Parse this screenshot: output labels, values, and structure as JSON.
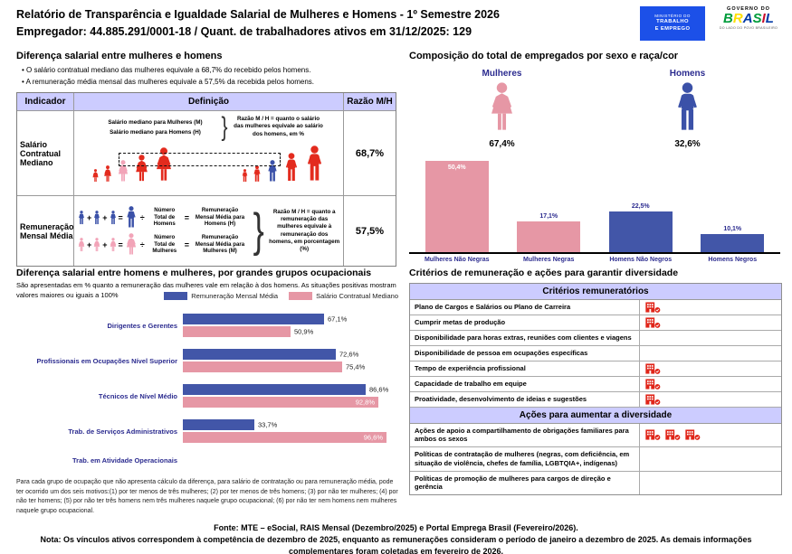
{
  "colors": {
    "accent_blue_bar": "#4256A8",
    "accent_pink_bar": "#E697A5",
    "figure_red": "#E32B1E",
    "figure_pink": "#F2A4B8",
    "figure_blue": "#3B51A8",
    "table_header_bg": "#CCCCFF",
    "navy_label": "#2B2B8F",
    "logo_blue": "#1C50E8",
    "icon_red": "#E02519",
    "brasil_letter_colors": [
      "#009C3B",
      "#FFDF00",
      "#0039A6",
      "#009C3B",
      "#C8102E",
      "#0039A6"
    ]
  },
  "header": {
    "title": "Relatório de Transparência e Igualdade Salarial de Mulheres e Homens - 1º Semestre 2026",
    "employer_line": "Empregador: 44.885.291/0001-18 / Quant. de trabalhadores ativos em 31/12/2025: 129",
    "logo_mte": {
      "line1": "MINISTÉRIO DO",
      "line2": "TRABALHO",
      "line3": "E EMPREGO"
    },
    "logo_gov": {
      "top": "GOVERNO DO",
      "brand": "BRASIL",
      "tagline": "DO LADO DO POVO BRASILEIRO"
    }
  },
  "formula_ops": {
    "plus": "+",
    "equals": "=",
    "divide": "÷"
  },
  "salary_diff": {
    "title": "Diferença salarial entre mulheres e homens",
    "bullets": [
      "O salário contratual mediano das mulheres equivale a 68,7% do recebido pelos homens.",
      "A remuneração média mensal das mulheres equivale a 57,5% da recebida pelos homens."
    ],
    "table": {
      "headers": [
        "Indicador",
        "Definição",
        "Razão M/H"
      ],
      "rows": [
        {
          "indicator": "Salário Contratual Mediano",
          "def_line1": "Salário mediano para Mulheres (M)",
          "def_line2": "Salário mediano para Homens (H)",
          "def_note": "Razão M / H = quanto o salário das mulheres equivale ao salário dos homens, em %",
          "ratio": "68,7%"
        },
        {
          "indicator": "Remuneração Mensal Média",
          "men_divisor": "Número\nTotal de\nHomens",
          "men_result": "Remuneração\nMensal Média para\nHomens (H)",
          "women_divisor": "Número\nTotal de\nMulheres",
          "women_result": "Remuneração\nMensal Média para\nMulheres (M)",
          "def_note": "Razão M / H = quanto a remuneração das mulheres equivale à remuneração dos homens, em porcentagem (%)",
          "ratio": "57,5%"
        }
      ]
    }
  },
  "composition": {
    "title": "Composição do total de empregados por sexo e raça/cor",
    "women_label": "Mulheres",
    "women_pct": "67,4%",
    "men_label": "Homens",
    "men_pct": "32,6%"
  },
  "chart_data": [
    {
      "type": "bar",
      "orientation": "vertical",
      "title": "Composição do total de empregados por sexo e raça/cor",
      "categories": [
        "Mulheres Não Negras",
        "Mulheres Negras",
        "Homens Não Negros",
        "Homens Negros"
      ],
      "values": [
        50.4,
        17.1,
        22.5,
        10.1
      ],
      "labels": [
        "50,4%",
        "17,1%",
        "22,5%",
        "10,1%"
      ],
      "colors": [
        "pink",
        "pink",
        "blue",
        "blue"
      ],
      "label_inside": [
        true,
        false,
        false,
        false
      ],
      "ylim": [
        0,
        53
      ],
      "grid": false
    },
    {
      "type": "bar",
      "orientation": "horizontal",
      "title": "Diferença salarial entre homens e mulheres, por grandes grupos ocupacionais",
      "categories": [
        "Dirigentes e Gerentes",
        "Profissionais em Ocupações Nível Superior",
        "Técnicos de Nível Médio",
        "Trab. de Serviços Administrativos",
        "Trab. em Atividade Operacionais"
      ],
      "series": [
        {
          "name": "Remuneração Mensal Média",
          "color": "blue",
          "values": [
            67.1,
            72.6,
            86.6,
            33.7,
            null
          ],
          "labels": [
            "67,1%",
            "72,6%",
            "86,6%",
            "33,7%",
            ""
          ],
          "label_inside": [
            false,
            false,
            false,
            false,
            false
          ]
        },
        {
          "name": "Salário Contratual Mediano",
          "color": "pink",
          "values": [
            50.9,
            75.4,
            92.8,
            96.6,
            null
          ],
          "labels": [
            "50,9%",
            "75,4%",
            "92,8%",
            "96,6%",
            ""
          ],
          "label_inside": [
            false,
            false,
            true,
            true,
            false
          ]
        }
      ],
      "xlim": [
        0,
        100
      ],
      "legend_position": "top-right",
      "grid": false
    }
  ],
  "occupational": {
    "title": "Diferença salarial entre homens e mulheres, por grandes grupos ocupacionais",
    "subtitle": "São apresentadas em % quanto a remuneração das mulheres vale em relação à dos homens. As situações positivas mostram valores maiores ou iguais a 100%",
    "footnote": "Para cada grupo de ocupação que não apresenta cálculo da diferença, para salário de contratação ou para remuneração média, pode ter ocorrido um dos seis motivos:(1) por ter menos de três mulheres; (2) por ter menos de três homens; (3) por não ter mulheres; (4) por não ter homens; (5) por não ter três homens nem três mulheres naquele grupo ocupacional; (6) por não ter nem homens nem mulheres naquele grupo ocupacional."
  },
  "criteria": {
    "title": "Critérios de remuneração e ações para garantir diversidade",
    "sections": [
      {
        "header": "Critérios remuneratórios",
        "rows": [
          {
            "label": "Plano de Cargos e Salários ou Plano de Carreira",
            "icons": 1
          },
          {
            "label": "Cumprir metas de produção",
            "icons": 1
          },
          {
            "label": "Disponibilidade para horas extras, reuniões com clientes e viagens",
            "icons": 0
          },
          {
            "label": "Disponibilidade de pessoa em ocupações específicas",
            "icons": 0
          },
          {
            "label": "Tempo de experiência profissional",
            "icons": 1
          },
          {
            "label": "Capacidade de trabalho em equipe",
            "icons": 1
          },
          {
            "label": "Proatividade, desenvolvimento de ideias e sugestões",
            "icons": 1
          }
        ]
      },
      {
        "header": "Ações para aumentar a diversidade",
        "rows": [
          {
            "label": "Ações de apoio a compartilhamento de obrigações familiares para ambos os sexos",
            "icons": 3
          },
          {
            "label": "Políticas de contratação de mulheres (negras, com deficiência, em situação de violência, chefes de família, LGBTQIA+, indígenas)",
            "icons": 0
          },
          {
            "label": "Políticas de promoção de mulheres para cargos de direção e gerência",
            "icons": 0
          }
        ]
      }
    ]
  },
  "footer": {
    "fonte": "Fonte: MTE – eSocial, RAIS Mensal (Dezembro/2025) e Portal Emprega Brasil (Fevereiro/2026).",
    "nota": "Nota: Os vínculos ativos correspondem à competência de dezembro de 2025, enquanto as remunerações consideram o período de janeiro a dezembro de 2025. As demais informações complementares foram coletadas em fevereiro de 2026."
  }
}
